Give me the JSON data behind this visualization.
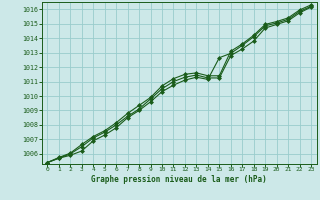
{
  "title": "Graphe pression niveau de la mer (hPa)",
  "bg_color": "#cce8e8",
  "line_color": "#1a5c1a",
  "grid_color": "#99cccc",
  "ylim": [
    1005.3,
    1016.5
  ],
  "xlim": [
    -0.5,
    23.5
  ],
  "yticks": [
    1006,
    1007,
    1008,
    1009,
    1010,
    1011,
    1012,
    1013,
    1014,
    1015,
    1016
  ],
  "xticks": [
    0,
    1,
    2,
    3,
    4,
    5,
    6,
    7,
    8,
    9,
    10,
    11,
    12,
    13,
    14,
    15,
    16,
    17,
    18,
    19,
    20,
    21,
    22,
    23
  ],
  "series1": [
    1005.4,
    1005.7,
    1005.9,
    1006.2,
    1006.9,
    1007.3,
    1007.8,
    1008.5,
    1009.0,
    1009.6,
    1010.3,
    1010.75,
    1011.1,
    1011.3,
    1011.15,
    1012.65,
    1012.95,
    1013.5,
    1014.1,
    1014.85,
    1015.05,
    1015.3,
    1015.85,
    1016.2
  ],
  "series2": [
    1005.4,
    1005.7,
    1006.0,
    1006.5,
    1007.1,
    1007.5,
    1008.0,
    1008.6,
    1009.1,
    1009.8,
    1010.5,
    1011.0,
    1011.3,
    1011.45,
    1011.25,
    1011.25,
    1012.8,
    1013.25,
    1013.8,
    1014.7,
    1014.95,
    1015.2,
    1015.75,
    1016.15
  ],
  "series3": [
    1005.4,
    1005.75,
    1006.05,
    1006.65,
    1007.2,
    1007.6,
    1008.15,
    1008.8,
    1009.35,
    1009.9,
    1010.7,
    1011.2,
    1011.5,
    1011.6,
    1011.4,
    1011.4,
    1013.1,
    1013.6,
    1014.2,
    1014.95,
    1015.15,
    1015.4,
    1015.95,
    1016.3
  ]
}
